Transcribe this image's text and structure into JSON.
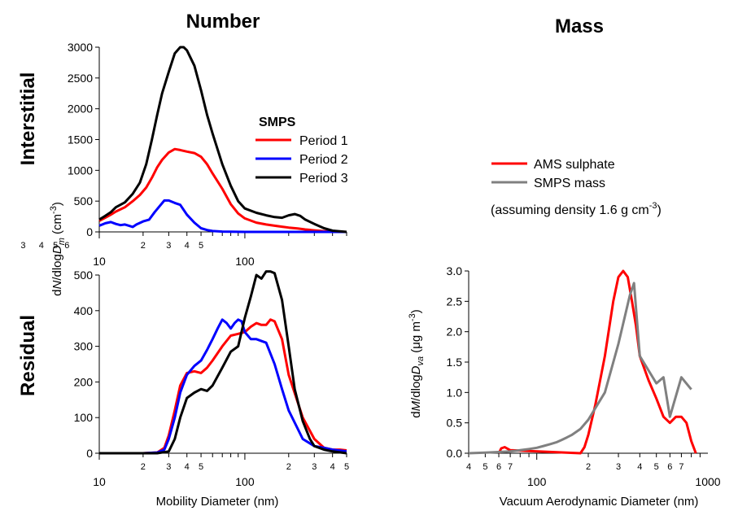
{
  "titles": {
    "number": "Number",
    "mass": "Mass",
    "interstitial": "Interstitial",
    "residual": "Residual"
  },
  "labels": {
    "number_y_prefix": "d",
    "number_y_N": "N",
    "number_y_mid": "/dlog",
    "number_y_D": "D",
    "number_y_sub": "m",
    "number_y_unit": " (cm",
    "number_y_exp": "-3",
    "number_y_close": ")",
    "number_x": "Mobility Diameter (nm)",
    "mass_y_prefix": "d",
    "mass_y_M": "M",
    "mass_y_mid": "/dlog",
    "mass_y_D": "D",
    "mass_y_sub": "va",
    "mass_y_unit": " (μg m",
    "mass_y_exp": "-3",
    "mass_y_close": ")",
    "mass_x": "Vacuum Aerodynamic Diameter (nm)"
  },
  "legends": {
    "smps_title": "SMPS",
    "period1": "Period 1",
    "period2": "Period 2",
    "period3": "Period 3",
    "ams": "AMS sulphate",
    "smps_mass": "SMPS mass",
    "density_note": "(assuming density 1.6 g cm",
    "density_exp": "-3",
    "density_close": ")"
  },
  "colors": {
    "period1": "#ff0000",
    "period2": "#0000ff",
    "period3": "#000000",
    "ams": "#ff0000",
    "smps_mass": "#808080"
  },
  "chart_data": [
    {
      "id": "interstitial",
      "type": "line",
      "title": "Number",
      "xscale": "log",
      "xlim": [
        10,
        500
      ],
      "ylim": [
        0,
        3000
      ],
      "yticks": [
        0,
        500,
        1000,
        1500,
        2000,
        2500,
        3000
      ],
      "major_ticks": [
        10,
        100
      ],
      "minor_labels": [
        2,
        3,
        4,
        5,
        6,
        20,
        30,
        40,
        50
      ],
      "minor_label_text": [
        "2",
        "3",
        "4",
        "5",
        "6",
        "2",
        "3",
        "4",
        "5"
      ],
      "series": [
        {
          "name": "Period 1",
          "color_key": "period1",
          "x": [
            10,
            11,
            12,
            13,
            15,
            17,
            19,
            21,
            23,
            25,
            27,
            30,
            33,
            36,
            40,
            45,
            50,
            55,
            60,
            70,
            80,
            90,
            100,
            120,
            140,
            160,
            180,
            200,
            230,
            260,
            300,
            350,
            400,
            500
          ],
          "y": [
            180,
            230,
            280,
            330,
            400,
            500,
            600,
            720,
            880,
            1050,
            1170,
            1290,
            1345,
            1330,
            1305,
            1280,
            1220,
            1100,
            950,
            700,
            450,
            300,
            220,
            150,
            120,
            100,
            85,
            70,
            55,
            40,
            25,
            12,
            5,
            0
          ]
        },
        {
          "name": "Period 2",
          "color_key": "period2",
          "x": [
            10,
            11,
            12,
            13,
            14,
            15,
            16,
            17,
            18,
            20,
            22,
            24,
            26,
            28,
            30,
            33,
            36,
            40,
            45,
            50,
            55,
            60,
            70,
            80,
            100,
            150,
            200,
            300,
            500
          ],
          "y": [
            100,
            140,
            160,
            130,
            110,
            120,
            100,
            80,
            120,
            170,
            200,
            320,
            420,
            510,
            510,
            470,
            440,
            280,
            150,
            60,
            30,
            15,
            5,
            2,
            0,
            0,
            0,
            0,
            0
          ]
        },
        {
          "name": "Period 3",
          "color_key": "period3",
          "x": [
            10,
            11,
            12,
            13,
            15,
            17,
            19,
            21,
            23,
            25,
            27,
            30,
            33,
            36,
            38,
            40,
            45,
            50,
            55,
            60,
            70,
            80,
            90,
            100,
            120,
            140,
            160,
            180,
            200,
            220,
            240,
            260,
            300,
            350,
            400,
            500
          ],
          "y": [
            200,
            260,
            320,
            400,
            480,
            620,
            800,
            1100,
            1500,
            1900,
            2250,
            2600,
            2900,
            3000,
            3000,
            2950,
            2700,
            2300,
            1900,
            1600,
            1100,
            750,
            500,
            380,
            310,
            270,
            240,
            230,
            270,
            290,
            260,
            200,
            130,
            60,
            20,
            0
          ]
        }
      ]
    },
    {
      "id": "residual",
      "type": "line",
      "xlabel": "Mobility Diameter (nm)",
      "xscale": "log",
      "xlim": [
        10,
        500
      ],
      "ylim": [
        0,
        500
      ],
      "yticks": [
        0,
        100,
        200,
        300,
        400,
        500
      ],
      "major_ticks": [
        10,
        100
      ],
      "minor_labels": [
        20,
        30,
        40,
        50,
        200,
        300,
        400,
        500
      ],
      "minor_label_text": [
        "2",
        "3",
        "4",
        "5",
        "2",
        "3",
        "4",
        "5"
      ],
      "series": [
        {
          "name": "Period 1",
          "color_key": "period1",
          "x": [
            10,
            20,
            25,
            28,
            30,
            33,
            36,
            40,
            45,
            50,
            55,
            60,
            70,
            80,
            90,
            100,
            110,
            120,
            130,
            140,
            150,
            160,
            180,
            200,
            250,
            300,
            350,
            400,
            450,
            500
          ],
          "y": [
            0,
            0,
            2,
            15,
            50,
            120,
            190,
            225,
            230,
            225,
            240,
            260,
            300,
            330,
            335,
            340,
            355,
            365,
            360,
            360,
            375,
            370,
            320,
            220,
            100,
            40,
            15,
            10,
            10,
            8
          ]
        },
        {
          "name": "Period 2",
          "color_key": "period2",
          "x": [
            10,
            20,
            25,
            28,
            30,
            33,
            36,
            40,
            45,
            50,
            55,
            60,
            65,
            70,
            75,
            80,
            85,
            90,
            95,
            100,
            110,
            120,
            140,
            160,
            180,
            200,
            250,
            300,
            350,
            400,
            500
          ],
          "y": [
            0,
            0,
            2,
            10,
            40,
            100,
            170,
            220,
            245,
            260,
            290,
            320,
            350,
            375,
            365,
            350,
            365,
            375,
            370,
            340,
            320,
            320,
            310,
            250,
            180,
            120,
            40,
            20,
            15,
            10,
            5
          ]
        },
        {
          "name": "Period 3",
          "color_key": "period3",
          "x": [
            10,
            25,
            30,
            33,
            36,
            40,
            45,
            50,
            55,
            60,
            70,
            80,
            90,
            100,
            110,
            120,
            130,
            140,
            150,
            160,
            180,
            200,
            220,
            250,
            280,
            300,
            350,
            400,
            500
          ],
          "y": [
            0,
            0,
            5,
            40,
            100,
            155,
            170,
            180,
            175,
            190,
            240,
            285,
            300,
            380,
            440,
            500,
            490,
            510,
            510,
            505,
            430,
            300,
            180,
            90,
            40,
            20,
            10,
            5,
            0
          ]
        }
      ]
    },
    {
      "id": "mass",
      "type": "line",
      "title": "Mass",
      "xlabel": "Vacuum Aerodynamic Diameter (nm)",
      "xscale": "log",
      "xlim": [
        40,
        1000
      ],
      "ylim": [
        0,
        3.0
      ],
      "yticks": [
        0.0,
        0.5,
        1.0,
        1.5,
        2.0,
        2.5,
        3.0
      ],
      "major_ticks": [
        100,
        1000
      ],
      "minor_labels": [
        40,
        50,
        60,
        70,
        200,
        300,
        400,
        500,
        600,
        700
      ],
      "minor_label_text": [
        "4",
        "5",
        "6",
        "7",
        "2",
        "3",
        "4",
        "5",
        "6",
        "7"
      ],
      "series": [
        {
          "name": "AMS sulphate",
          "color_key": "ams",
          "x": [
            60,
            62,
            65,
            70,
            180,
            190,
            200,
            220,
            250,
            280,
            300,
            320,
            340,
            360,
            380,
            400,
            450,
            500,
            550,
            600,
            650,
            700,
            750,
            800,
            850
          ],
          "y": [
            0.0,
            0.08,
            0.1,
            0.05,
            0.0,
            0.1,
            0.3,
            0.8,
            1.6,
            2.5,
            2.9,
            3.0,
            2.9,
            2.5,
            2.1,
            1.6,
            1.2,
            0.9,
            0.6,
            0.5,
            0.6,
            0.6,
            0.5,
            0.2,
            0.0
          ]
        },
        {
          "name": "SMPS mass",
          "color_key": "smps_mass",
          "x": [
            40,
            50,
            60,
            70,
            80,
            90,
            100,
            110,
            120,
            130,
            140,
            150,
            160,
            180,
            200,
            250,
            300,
            350,
            370,
            400,
            500,
            550,
            600,
            700,
            800
          ],
          "y": [
            0.0,
            0.01,
            0.02,
            0.03,
            0.05,
            0.07,
            0.09,
            0.12,
            0.15,
            0.18,
            0.22,
            0.26,
            0.3,
            0.4,
            0.55,
            1.0,
            1.8,
            2.6,
            2.8,
            1.6,
            1.15,
            1.25,
            0.6,
            1.25,
            1.05
          ]
        }
      ]
    }
  ]
}
